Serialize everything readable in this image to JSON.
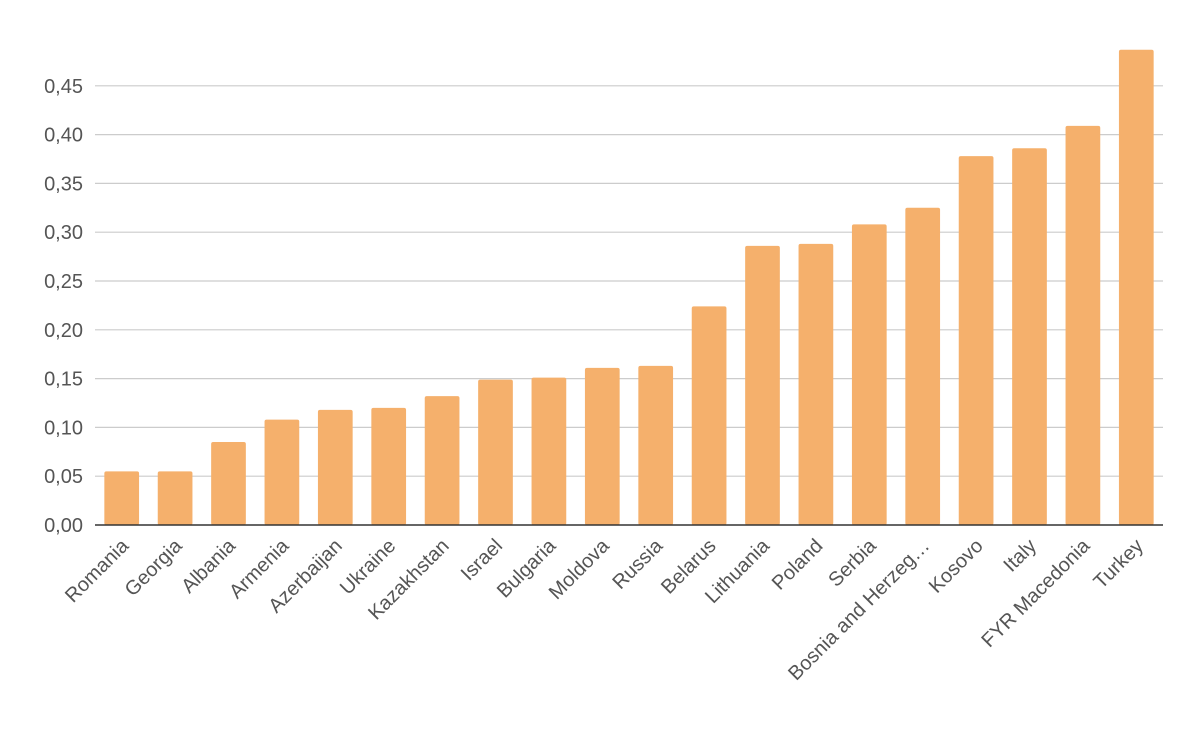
{
  "chart_data": {
    "type": "bar",
    "title": "",
    "xlabel": "",
    "ylabel": "",
    "ylim": [
      0,
      0.5
    ],
    "yticks": [
      "0,00",
      "0,05",
      "0,10",
      "0,15",
      "0,20",
      "0,25",
      "0,30",
      "0,35",
      "0,40",
      "0,45"
    ],
    "grid": true,
    "bar_color": "#f5b06c",
    "categories": [
      "Romania",
      "Georgia",
      "Albania",
      "Armenia",
      "Azerbaijan",
      "Ukraine",
      "Kazakhstan",
      "Israel",
      "Bulgaria",
      "Moldova",
      "Russia",
      "Belarus",
      "Lithuania",
      "Poland",
      "Serbia",
      "Bosnia and Herzeg…",
      "Kosovo",
      "Italy",
      "FYR Macedonia",
      "Turkey"
    ],
    "values": [
      0.055,
      0.055,
      0.085,
      0.108,
      0.118,
      0.12,
      0.132,
      0.149,
      0.151,
      0.161,
      0.163,
      0.224,
      0.286,
      0.288,
      0.308,
      0.325,
      0.378,
      0.386,
      0.409,
      0.487
    ]
  }
}
